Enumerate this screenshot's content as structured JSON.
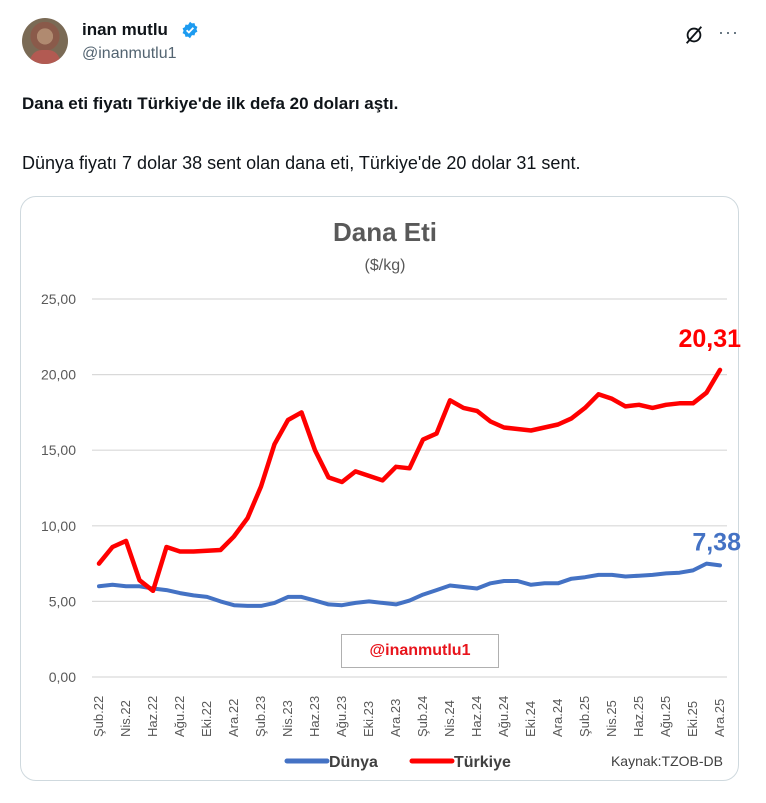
{
  "tweet": {
    "author_name": "inan mutlu",
    "handle": "@inanmutlu1",
    "verified": true,
    "icons": [
      "grok-icon",
      "more-icon",
      "verified-badge-icon"
    ],
    "text_line1": "Dana eti fiyatı Türkiye'de ilk defa 20 doları aştı.",
    "text_line2": "Dünya fiyatı 7 dolar 38 sent olan dana eti, Türkiye'de 20 dolar 31 sent.",
    "more_label": "···"
  },
  "chart_data": {
    "type": "line",
    "title": "Dana Eti",
    "subtitle": "($/kg)",
    "ylim": [
      0,
      25
    ],
    "yticks": [
      "0,00",
      "5,00",
      "10,00",
      "15,00",
      "20,00",
      "25,00"
    ],
    "grid": true,
    "xtick_labels": [
      "Şub.22",
      "Nis.22",
      "Haz.22",
      "Ağu.22",
      "Eki.22",
      "Ara.22",
      "Şub.23",
      "Nis.23",
      "Haz.23",
      "Ağu.23",
      "Eki.23",
      "Ara.23",
      "Şub.24",
      "Nis.24",
      "Haz.24",
      "Ağu.24",
      "Eki.24",
      "Ara.24",
      "Şub.25",
      "Nis.25",
      "Haz.25",
      "Ağu.25",
      "Eki.25",
      "Ara.25"
    ],
    "x_start": "2022-02",
    "x_end": "2025-12",
    "legend_position": "bottom",
    "source": "Kaynak:TZOB-DB",
    "watermark": "@inanmutlu1",
    "series": [
      {
        "name": "Dünya",
        "color": "#4472c4",
        "end_label": "7,38",
        "values": [
          6.0,
          6.1,
          6.0,
          6.0,
          5.85,
          5.75,
          5.55,
          5.4,
          5.3,
          5.0,
          4.75,
          4.7,
          4.7,
          4.9,
          5.3,
          5.3,
          5.05,
          4.8,
          4.75,
          4.9,
          5.0,
          4.9,
          4.8,
          5.05,
          5.45,
          5.75,
          6.05,
          5.95,
          5.85,
          6.2,
          6.35,
          6.35,
          6.1,
          6.2,
          6.2,
          6.5,
          6.6,
          6.75,
          6.75,
          6.65,
          6.7,
          6.75,
          6.85,
          6.9,
          7.05,
          7.5,
          7.38
        ]
      },
      {
        "name": "Türkiye",
        "color": "#ff0000",
        "end_label": "20,31",
        "values": [
          7.5,
          8.6,
          9.0,
          6.4,
          5.7,
          8.6,
          8.3,
          8.3,
          8.35,
          8.4,
          9.3,
          10.5,
          12.6,
          15.4,
          17.0,
          17.5,
          15.0,
          13.2,
          12.9,
          13.6,
          13.3,
          13.0,
          13.9,
          13.8,
          15.7,
          16.1,
          18.3,
          17.8,
          17.6,
          16.9,
          16.5,
          16.4,
          16.3,
          16.5,
          16.7,
          17.1,
          17.8,
          18.7,
          18.4,
          17.9,
          18.0,
          17.8,
          18.0,
          18.1,
          18.1,
          18.8,
          20.31
        ]
      }
    ]
  }
}
